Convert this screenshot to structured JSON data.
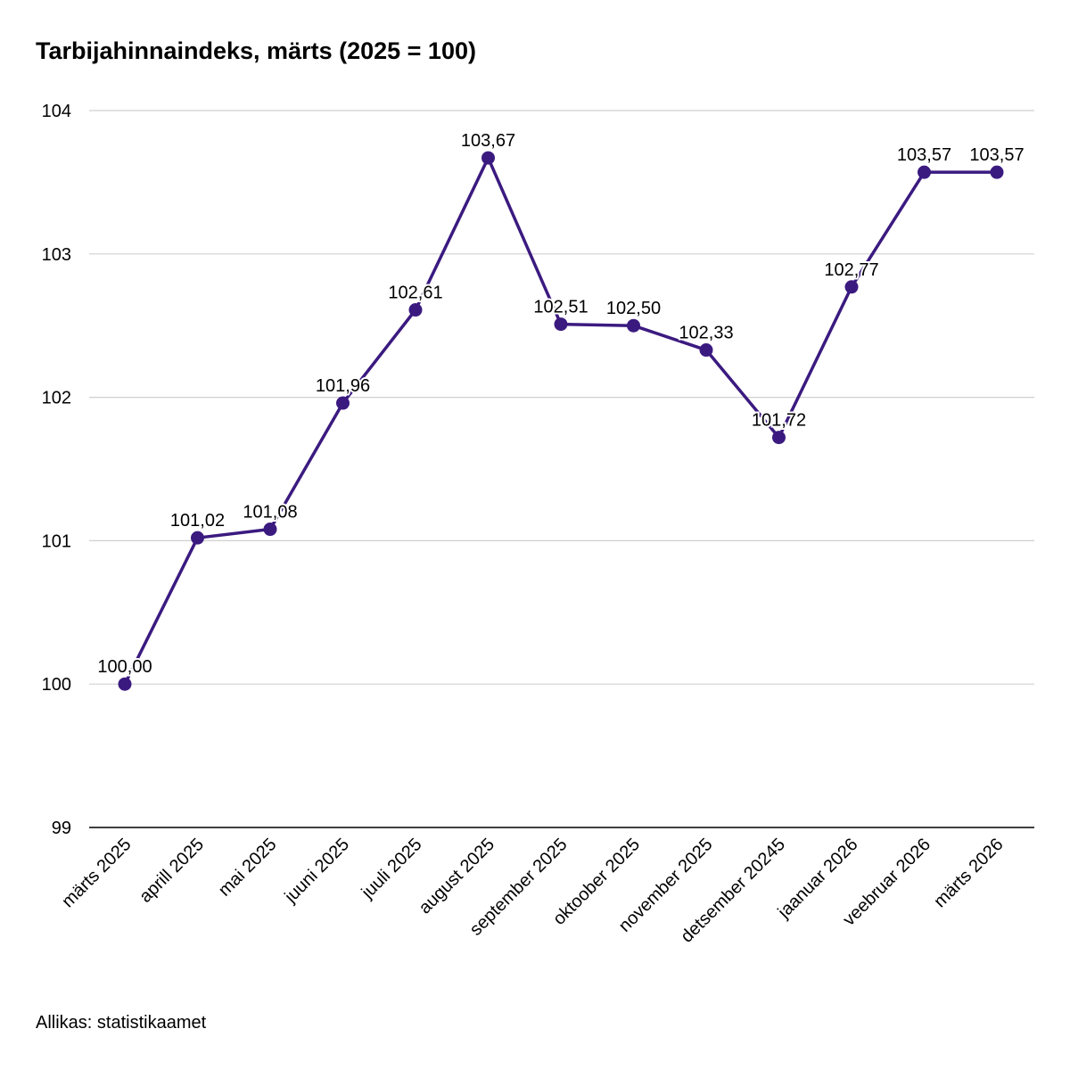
{
  "chart_data": {
    "type": "line",
    "title": "Tarbijahinnaindeks, märts (2025 = 100)",
    "source": "Allikas: statistikaamet",
    "categories": [
      "märts 2025",
      "aprill 2025",
      "mai 2025",
      "juuni 2025",
      "juuli 2025",
      "august 2025",
      "september 2025",
      "oktoober 2025",
      "november 2025",
      "detsember 20245",
      "jaanuar 2026",
      "veebruar 2026",
      "märts 2026"
    ],
    "values": [
      100.0,
      101.02,
      101.08,
      101.96,
      102.61,
      103.67,
      102.51,
      102.5,
      102.33,
      101.72,
      102.77,
      103.57,
      103.57
    ],
    "data_labels": [
      "100,00",
      "101,02",
      "101,08",
      "101,96",
      "102,61",
      "103,67",
      "102,51",
      "102,50",
      "102,33",
      "101,72",
      "102,77",
      "103,57",
      "103,57"
    ],
    "yticks": [
      "99",
      "100",
      "101",
      "102",
      "103",
      "104"
    ],
    "ylim": [
      99,
      104
    ],
    "grid": true,
    "legend": "none",
    "color": "#3b1a80"
  }
}
